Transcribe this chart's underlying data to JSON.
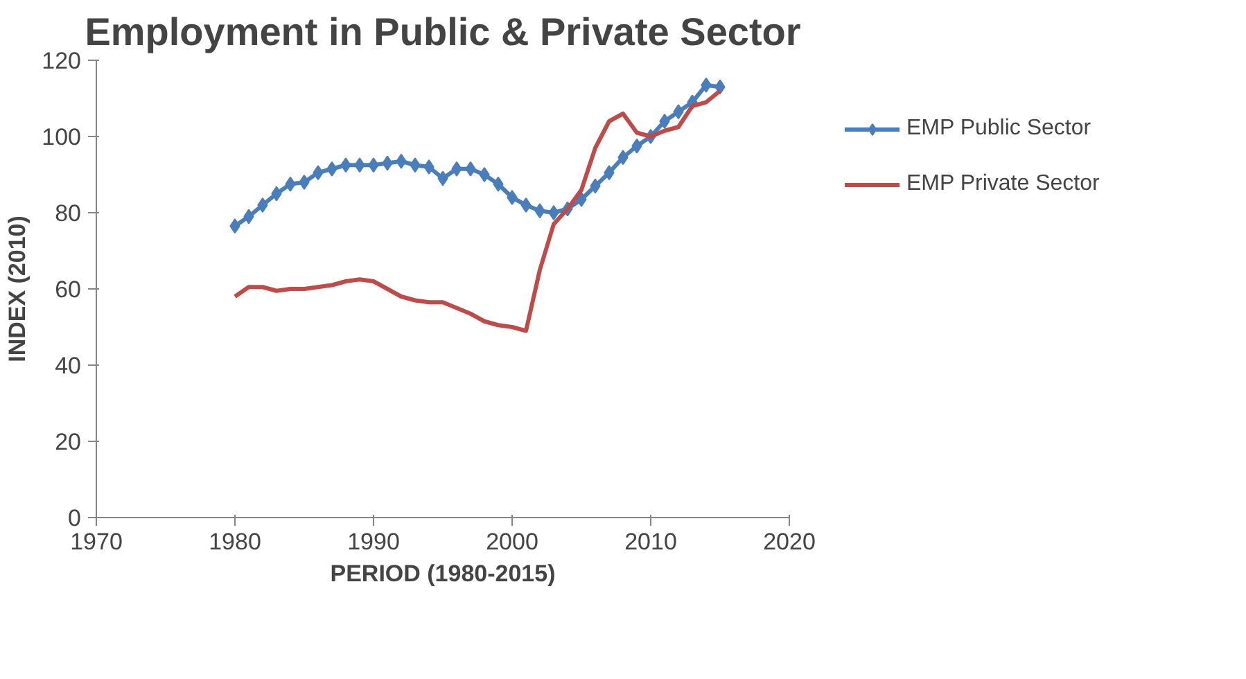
{
  "chart_data": {
    "type": "line",
    "title": "Employment in Public & Private Sector",
    "xlabel": "PERIOD (1980-2015)",
    "ylabel": "INDEX (2010)",
    "x": [
      1980,
      1981,
      1982,
      1983,
      1984,
      1985,
      1986,
      1987,
      1988,
      1989,
      1990,
      1991,
      1992,
      1993,
      1994,
      1995,
      1996,
      1997,
      1998,
      1999,
      2000,
      2001,
      2002,
      2003,
      2004,
      2005,
      2006,
      2007,
      2008,
      2009,
      2010,
      2011,
      2012,
      2013,
      2014,
      2015
    ],
    "series": [
      {
        "name": "EMP Public Sector",
        "color": "#4a7ebb",
        "marker": "diamond",
        "values": [
          76.5,
          79,
          82,
          85,
          87.5,
          88,
          90.5,
          91.5,
          92.5,
          92.5,
          92.5,
          93,
          93.5,
          92.5,
          92,
          89,
          91.5,
          91.5,
          90,
          87.5,
          84,
          82,
          80.5,
          80,
          81,
          83.5,
          87,
          90.5,
          94.5,
          97.5,
          100,
          104,
          106.5,
          109,
          113.5,
          113
        ]
      },
      {
        "name": "EMP Private Sector",
        "color": "#be4b48",
        "marker": "none",
        "values": [
          58,
          60.5,
          60.5,
          59.5,
          60,
          60,
          60.5,
          61,
          62,
          62.5,
          62,
          60,
          58,
          57,
          56.5,
          56.5,
          55,
          53.5,
          51.5,
          50.5,
          50,
          49,
          65,
          77,
          81,
          86,
          97,
          104,
          106,
          101,
          100,
          101.5,
          102.5,
          108,
          109,
          112
        ]
      }
    ],
    "xlim": [
      1970,
      2020
    ],
    "xticks": [
      1970,
      1980,
      1990,
      2000,
      2010,
      2020
    ],
    "ylim": [
      0,
      120
    ],
    "yticks": [
      0,
      20,
      40,
      60,
      80,
      100,
      120
    ],
    "grid": false,
    "legend": "right",
    "line_style": "solid"
  }
}
